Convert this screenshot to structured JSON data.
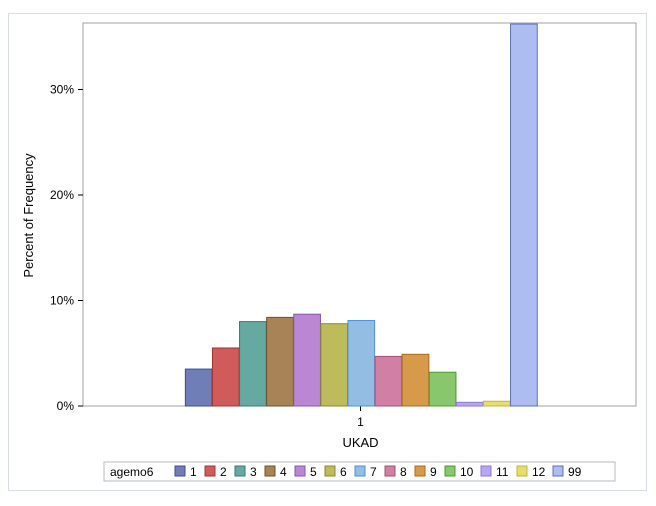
{
  "chart_data": {
    "type": "bar",
    "xlabel": "UKAD",
    "ylabel": "Percent of Frequency",
    "categories": [
      "1"
    ],
    "ylim": [
      0,
      36.3
    ],
    "yticks": [
      {
        "value": 0,
        "label": "0%"
      },
      {
        "value": 10,
        "label": "10%"
      },
      {
        "value": 20,
        "label": "20%"
      },
      {
        "value": 30,
        "label": "30%"
      }
    ],
    "legend": {
      "title": "agemo6",
      "placement": "bottom"
    },
    "grid": false,
    "series": [
      {
        "name": "1",
        "values": [
          3.5
        ],
        "color": "#6f7eb7",
        "stroke": "#3f4f8a"
      },
      {
        "name": "2",
        "values": [
          5.5
        ],
        "color": "#d05b5b",
        "stroke": "#a33434"
      },
      {
        "name": "3",
        "values": [
          8.0
        ],
        "color": "#66a9a0",
        "stroke": "#3a7a72"
      },
      {
        "name": "4",
        "values": [
          8.4
        ],
        "color": "#a98358",
        "stroke": "#6e522f"
      },
      {
        "name": "5",
        "values": [
          8.7
        ],
        "color": "#b987d4",
        "stroke": "#8a56a8"
      },
      {
        "name": "6",
        "values": [
          7.8
        ],
        "color": "#bdbb5b",
        "stroke": "#8b8a2f"
      },
      {
        "name": "7",
        "values": [
          8.1
        ],
        "color": "#94bde3",
        "stroke": "#4a94d2"
      },
      {
        "name": "8",
        "values": [
          4.7
        ],
        "color": "#d27fa6",
        "stroke": "#a24f77"
      },
      {
        "name": "9",
        "values": [
          4.9
        ],
        "color": "#d79a4a",
        "stroke": "#a86b1f"
      },
      {
        "name": "10",
        "values": [
          3.2
        ],
        "color": "#88c76c",
        "stroke": "#4d9a31"
      },
      {
        "name": "11",
        "values": [
          0.35
        ],
        "color": "#b7a7f0",
        "stroke": "#8a79d0"
      },
      {
        "name": "12",
        "values": [
          0.45
        ],
        "color": "#e7dd6a",
        "stroke": "#c1b43a"
      },
      {
        "name": "99",
        "values": [
          36.2
        ],
        "color": "#aebdf1",
        "stroke": "#5d6fb8"
      }
    ]
  }
}
